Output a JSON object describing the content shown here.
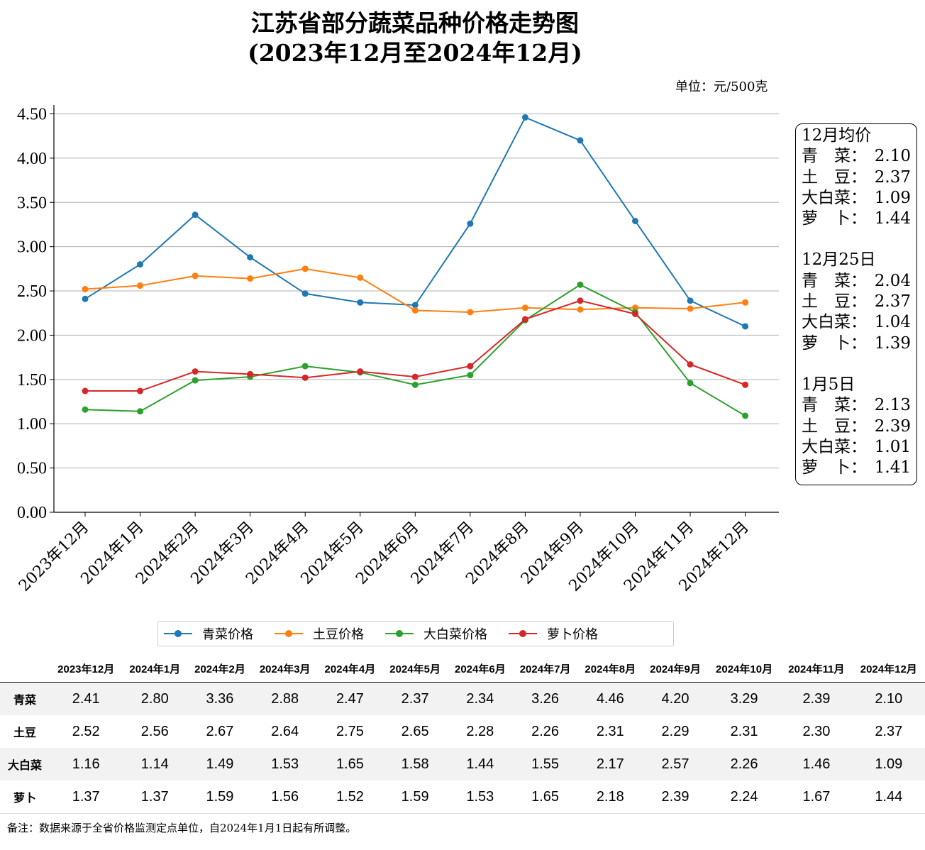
{
  "title_line1": "江苏省部分蔬菜品种价格走势图",
  "title_line2": "(2023年12月至2024年12月)",
  "unit": "单位：元/500克",
  "chart_data": {
    "type": "line",
    "x": [
      "2023年12月",
      "2024年1月",
      "2024年2月",
      "2024年3月",
      "2024年4月",
      "2024年5月",
      "2024年6月",
      "2024年7月",
      "2024年8月",
      "2024年9月",
      "2024年10月",
      "2024年11月",
      "2024年12月"
    ],
    "series": [
      {
        "name": "青菜价格",
        "color": "#1f77b4",
        "values": [
          2.41,
          2.8,
          3.36,
          2.88,
          2.47,
          2.37,
          2.34,
          3.26,
          4.46,
          4.2,
          3.29,
          2.39,
          2.1
        ]
      },
      {
        "name": "土豆价格",
        "color": "#ff7f0e",
        "values": [
          2.52,
          2.56,
          2.67,
          2.64,
          2.75,
          2.65,
          2.28,
          2.26,
          2.31,
          2.29,
          2.31,
          2.3,
          2.37
        ]
      },
      {
        "name": "大白菜价格",
        "color": "#2ca02c",
        "values": [
          1.16,
          1.14,
          1.49,
          1.53,
          1.65,
          1.58,
          1.44,
          1.55,
          2.17,
          2.57,
          2.26,
          1.46,
          1.09
        ]
      },
      {
        "name": "萝卜价格",
        "color": "#d62728",
        "values": [
          1.37,
          1.37,
          1.59,
          1.56,
          1.52,
          1.59,
          1.53,
          1.65,
          2.18,
          2.39,
          2.24,
          1.67,
          1.44
        ]
      }
    ],
    "ylim": [
      0,
      4.6
    ],
    "yticks": [
      "0.00",
      "0.50",
      "1.00",
      "1.50",
      "2.00",
      "2.50",
      "3.00",
      "3.50",
      "4.00",
      "4.50"
    ],
    "grid": "horizontal",
    "legend": "bottom"
  },
  "info_box": {
    "sections": [
      {
        "heading": "12月均价",
        "rows": [
          {
            "label": "青　菜：",
            "value": "2.10"
          },
          {
            "label": "土　豆：",
            "value": "2.37"
          },
          {
            "label": "大白菜：",
            "value": "1.09"
          },
          {
            "label": "萝　卜：",
            "value": "1.44"
          }
        ]
      },
      {
        "heading": "12月25日",
        "rows": [
          {
            "label": "青　菜：",
            "value": "2.04"
          },
          {
            "label": "土　豆：",
            "value": "2.37"
          },
          {
            "label": "大白菜：",
            "value": "1.04"
          },
          {
            "label": "萝　卜：",
            "value": "1.39"
          }
        ]
      },
      {
        "heading": "1月5日",
        "rows": [
          {
            "label": "青　菜：",
            "value": "2.13"
          },
          {
            "label": "土　豆：",
            "value": "2.39"
          },
          {
            "label": "大白菜：",
            "value": "1.01"
          },
          {
            "label": "萝　卜：",
            "value": "1.41"
          }
        ]
      }
    ]
  },
  "table": {
    "columns": [
      "2023年12月",
      "2024年1月",
      "2024年2月",
      "2024年3月",
      "2024年4月",
      "2024年5月",
      "2024年6月",
      "2024年7月",
      "2024年8月",
      "2024年9月",
      "2024年10月",
      "2024年11月",
      "2024年12月"
    ],
    "rows": [
      {
        "name": "青菜",
        "values": [
          "2.41",
          "2.80",
          "3.36",
          "2.88",
          "2.47",
          "2.37",
          "2.34",
          "3.26",
          "4.46",
          "4.20",
          "3.29",
          "2.39",
          "2.10"
        ]
      },
      {
        "name": "土豆",
        "values": [
          "2.52",
          "2.56",
          "2.67",
          "2.64",
          "2.75",
          "2.65",
          "2.28",
          "2.26",
          "2.31",
          "2.29",
          "2.31",
          "2.30",
          "2.37"
        ]
      },
      {
        "name": "大白菜",
        "values": [
          "1.16",
          "1.14",
          "1.49",
          "1.53",
          "1.65",
          "1.58",
          "1.44",
          "1.55",
          "2.17",
          "2.57",
          "2.26",
          "1.46",
          "1.09"
        ]
      },
      {
        "name": "萝卜",
        "values": [
          "1.37",
          "1.37",
          "1.59",
          "1.56",
          "1.52",
          "1.59",
          "1.53",
          "1.65",
          "2.18",
          "2.39",
          "2.24",
          "1.67",
          "1.44"
        ]
      }
    ]
  },
  "footnote": "备注：数据来源于全省价格监测定点单位，自2024年1月1日起有所调整。"
}
